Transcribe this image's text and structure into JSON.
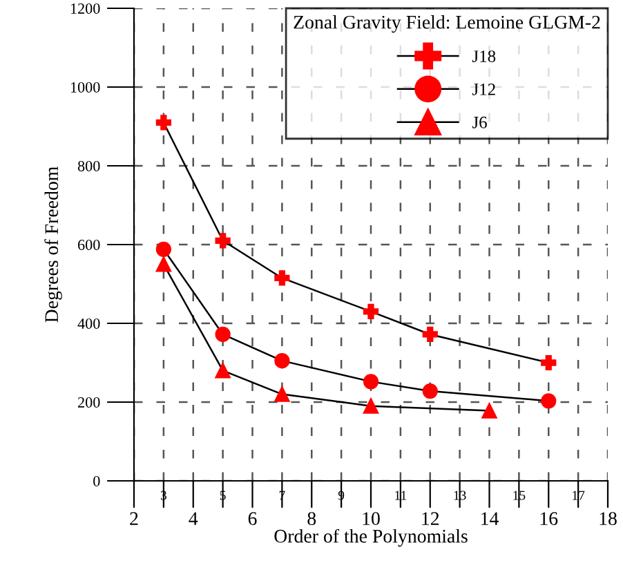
{
  "chart_data": {
    "type": "line",
    "xlabel": "Order of the Polynomials",
    "ylabel": "Degrees of Freedom",
    "legend_title": "Zonal Gravity Field: Lemoine GLGM-2",
    "xlim": [
      2,
      18
    ],
    "xticks": [
      2,
      4,
      6,
      8,
      10,
      12,
      14,
      16,
      18
    ],
    "x2lim": [
      2,
      18
    ],
    "x2ticks": [
      3,
      5,
      7,
      9,
      11,
      13,
      15,
      17
    ],
    "ylim": [
      0,
      1200
    ],
    "yticks": [
      0,
      200,
      400,
      600,
      800,
      1000,
      1200
    ],
    "grid": true,
    "legend": "top right",
    "series": [
      {
        "name": "J18",
        "color": "#ff0000",
        "marker": "cross",
        "x": [
          3,
          5,
          7,
          10,
          12,
          16
        ],
        "values": [
          910,
          610,
          515,
          430,
          372,
          300
        ]
      },
      {
        "name": "J12",
        "color": "#ff0000",
        "marker": "circle",
        "x": [
          3,
          5,
          7,
          10,
          12,
          16
        ],
        "values": [
          588,
          372,
          305,
          252,
          228,
          203
        ]
      },
      {
        "name": "J6",
        "color": "#ff0000",
        "marker": "triangle",
        "x": [
          3,
          5,
          7,
          10,
          14
        ],
        "values": [
          550,
          280,
          220,
          190,
          178
        ]
      }
    ]
  }
}
